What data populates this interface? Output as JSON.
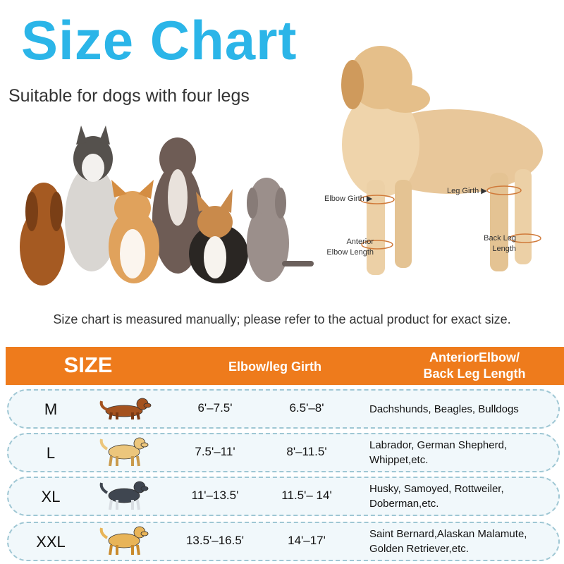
{
  "header": {
    "title": "Size Chart",
    "subtitle": "Suitable for dogs with four legs"
  },
  "diagram": {
    "labels": [
      {
        "lines": [
          "Elbow Girth"
        ]
      },
      {
        "lines": [
          "Leg Girth"
        ]
      },
      {
        "lines": [
          "Anterior",
          "Elbow Length"
        ]
      },
      {
        "lines": [
          "Back Leg",
          "Length"
        ]
      }
    ]
  },
  "note": "Size chart is measured manually; please refer to the actual product for exact size.",
  "table": {
    "headers": [
      [
        "SIZE"
      ],
      [
        "Elbow/leg Girth"
      ],
      [
        "AnteriorElbow/",
        "Back Leg Length"
      ]
    ],
    "rows": [
      {
        "size": "M",
        "elbow_girth": "6'–7.5'",
        "leg_girth": "6.5'–8'",
        "breeds": [
          "Dachshunds, Beagles, Bulldogs"
        ]
      },
      {
        "size": "L",
        "elbow_girth": "7.5'–11'",
        "leg_girth": "8'–11.5'",
        "breeds": [
          "Labrador, German Shepherd,",
          "Whippet,etc."
        ]
      },
      {
        "size": "XL",
        "elbow_girth": "11'–13.5'",
        "leg_girth": "11.5'– 14'",
        "breeds": [
          "Husky, Samoyed, Rottweiler,",
          "Doberman,etc."
        ]
      },
      {
        "size": "XXL",
        "elbow_girth": "13.5'–16.5'",
        "leg_girth": "14'–17'",
        "breeds": [
          "Saint Bernard,Alaskan Malamute,",
          "Golden Retriever,etc."
        ]
      }
    ]
  }
}
